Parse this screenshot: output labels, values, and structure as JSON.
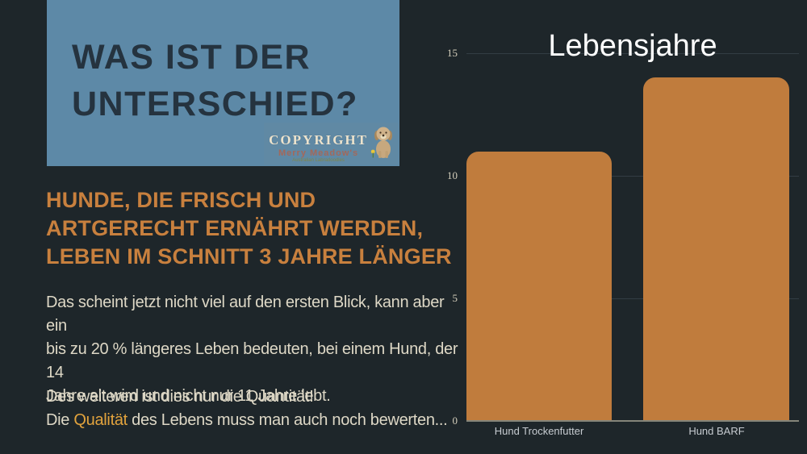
{
  "title_box": {
    "lines": [
      "WAS IST DER",
      "UNTERSCHIED?"
    ],
    "bg_color": "#5d89a7",
    "text_color": "#25333f"
  },
  "copyright": {
    "label": "COPYRIGHT",
    "brand": "Merry Meadow's",
    "sub": "Australian Labradoodles",
    "dog_icon": "sitting-tan-dog-with-flower"
  },
  "left_column": {
    "heading": {
      "lines": [
        "HUNDE, DIE FRISCH UND",
        "ARTGERECHT ERNÄHRT WERDEN,",
        "LEBEN IM SCHNITT 3 JAHRE LÄNGER"
      ],
      "color": "#c8803e"
    },
    "paragraph1_lines": [
      "Das scheint jetzt nicht viel auf den ersten Blick, kann aber ein",
      "bis zu 20 % längeres Leben bedeuten, bei einem Hund, der 14",
      "Jahre alt wird und nicht nur 11 Jahre lebt."
    ],
    "paragraph2": {
      "line1": "Des weiteren ist dies nur die Quantität!",
      "line2_before": "Die ",
      "line2_highlight": "Qualität",
      "line2_after": " des Lebens muss man auch noch bewerten...",
      "highlight_color": "#e2a33d"
    }
  },
  "chart_data": {
    "type": "bar",
    "title": "Lebensjahre",
    "categories": [
      "Hund Trockenfutter",
      "Hund BARF"
    ],
    "values": [
      11,
      14
    ],
    "yticks": [
      0,
      5,
      10,
      15
    ],
    "ylim": [
      0,
      15
    ],
    "xlabel": "",
    "ylabel": "",
    "grid": true,
    "legend": false,
    "bar_color": "#c07c3d",
    "title_color": "#ffffff",
    "tick_color": "#d4cebb",
    "background": "#1e262a"
  }
}
